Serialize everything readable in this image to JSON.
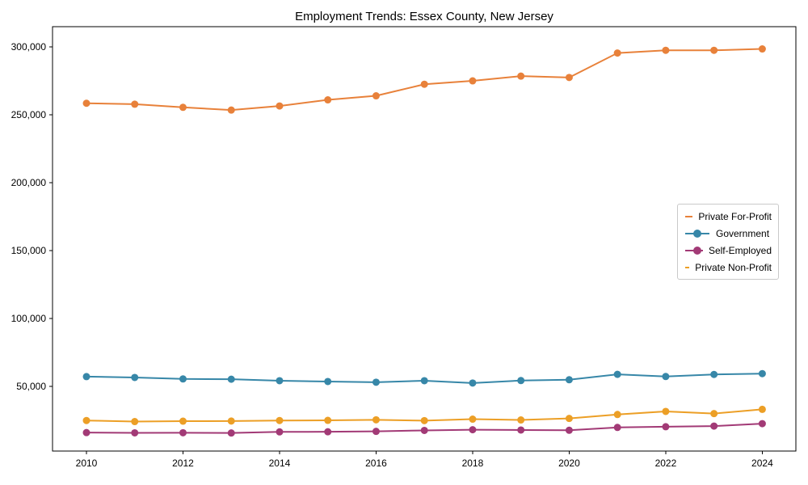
{
  "chart_data": {
    "type": "line",
    "title": "Employment Trends: Essex County, New Jersey",
    "xlabel": "",
    "ylabel": "",
    "grid": false,
    "legend_position": "center right",
    "x": [
      2010,
      2011,
      2012,
      2013,
      2014,
      2015,
      2016,
      2017,
      2018,
      2019,
      2020,
      2021,
      2022,
      2023,
      2024
    ],
    "xtick_years": [
      2010,
      2012,
      2014,
      2016,
      2018,
      2020,
      2022,
      2024
    ],
    "xtick_labels": [
      "2010",
      "2012",
      "2014",
      "2016",
      "2018",
      "2020",
      "2022",
      "2024"
    ],
    "ytick_values": [
      50000,
      100000,
      150000,
      200000,
      250000,
      300000
    ],
    "ytick_labels": [
      "50,000",
      "100,000",
      "150,000",
      "200,000",
      "250,000",
      "300,000"
    ],
    "ylim": [
      2400,
      314900
    ],
    "series": [
      {
        "name": "Private For-Profit",
        "color": "#e8813a",
        "values": [
          258500,
          257800,
          255500,
          253500,
          256500,
          261000,
          264000,
          272500,
          275000,
          278500,
          277500,
          295500,
          297500,
          297500,
          298500
        ]
      },
      {
        "name": "Government",
        "color": "#3787a8",
        "values": [
          57200,
          56600,
          55500,
          55300,
          54200,
          53600,
          53100,
          54200,
          52500,
          54300,
          54900,
          58900,
          57300,
          58800,
          59400
        ]
      },
      {
        "name": "Self-Employed",
        "color": "#a23a76",
        "values": [
          16000,
          15800,
          15900,
          15700,
          16500,
          16600,
          16900,
          17600,
          18100,
          17900,
          17700,
          19800,
          20300,
          20800,
          22600
        ]
      },
      {
        "name": "Private Non-Profit",
        "color": "#ec9f26",
        "values": [
          24900,
          24100,
          24400,
          24500,
          24900,
          25000,
          25400,
          24800,
          25900,
          25300,
          26400,
          29300,
          31600,
          30000,
          33100
        ]
      }
    ]
  }
}
